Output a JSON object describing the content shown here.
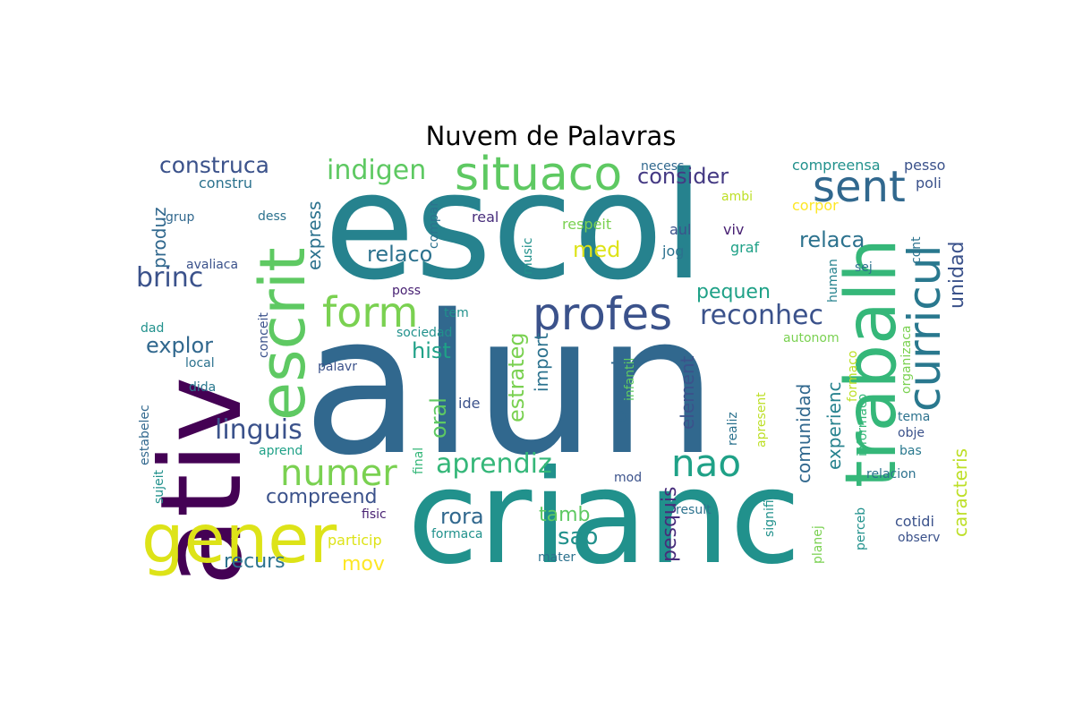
{
  "chart": {
    "type": "wordcloud",
    "title": "Nuvem de Palavras"
  },
  "chart_data": {
    "type": "wordcloud",
    "title": "Nuvem de Palavras",
    "palette": "viridis",
    "background": "#ffffff",
    "words": [
      {
        "text": "alun",
        "color": "#31688e"
      },
      {
        "text": "escol",
        "color": "#26828e"
      },
      {
        "text": "crianc",
        "color": "#21918c"
      },
      {
        "text": "ativ",
        "color": "#440154"
      },
      {
        "text": "gener",
        "color": "#dde318"
      },
      {
        "text": "trabalh",
        "color": "#35b779"
      },
      {
        "text": "escrit",
        "color": "#5ec962"
      },
      {
        "text": "situaco",
        "color": "#5ec962"
      },
      {
        "text": "profes",
        "color": "#3b528b"
      },
      {
        "text": "curricul",
        "color": "#29788e"
      },
      {
        "text": "sent",
        "color": "#31688e"
      },
      {
        "text": "form",
        "color": "#7ad151"
      },
      {
        "text": "numer",
        "color": "#7ad151"
      },
      {
        "text": "nao",
        "color": "#1fa187"
      },
      {
        "text": "reconhec",
        "color": "#3b528b"
      },
      {
        "text": "indigen",
        "color": "#5ec962"
      },
      {
        "text": "aprendiz",
        "color": "#35b779"
      },
      {
        "text": "linguis",
        "color": "#3b528b"
      },
      {
        "text": "brinc",
        "color": "#3b528b"
      },
      {
        "text": "construca",
        "color": "#3b528b"
      },
      {
        "text": "consider",
        "color": "#443983"
      },
      {
        "text": "relaco",
        "color": "#2c728e"
      },
      {
        "text": "relaca",
        "color": "#2c728e"
      },
      {
        "text": "med",
        "color": "#dde318"
      },
      {
        "text": "pequen",
        "color": "#1fa187"
      },
      {
        "text": "explor",
        "color": "#31688e"
      },
      {
        "text": "hist",
        "color": "#1fa187"
      },
      {
        "text": "compreend",
        "color": "#3b528b"
      },
      {
        "text": "rora",
        "color": "#31688e"
      },
      {
        "text": "sao",
        "color": "#21918c"
      },
      {
        "text": "tamb",
        "color": "#5ec962"
      },
      {
        "text": "recurs",
        "color": "#2c728e"
      },
      {
        "text": "mov",
        "color": "#fde725"
      },
      {
        "text": "caracteris",
        "color": "#bddf26"
      },
      {
        "text": "unidad",
        "color": "#3b528b"
      },
      {
        "text": "experienc",
        "color": "#26828e"
      },
      {
        "text": "comunidad",
        "color": "#31688e"
      },
      {
        "text": "pesquis",
        "color": "#472d7b"
      },
      {
        "text": "organiz",
        "color": "#31688e"
      },
      {
        "text": "element",
        "color": "#3b528b"
      },
      {
        "text": "estrateg",
        "color": "#7ad151"
      },
      {
        "text": "import",
        "color": "#2c728e"
      },
      {
        "text": "oral",
        "color": "#5ec962"
      },
      {
        "text": "express",
        "color": "#2c728e"
      },
      {
        "text": "produz",
        "color": "#31688e"
      },
      {
        "text": "compreensa",
        "color": "#21918c"
      },
      {
        "text": "pesso",
        "color": "#3b528b"
      },
      {
        "text": "poli",
        "color": "#3b528b"
      },
      {
        "text": "necess",
        "color": "#31688e"
      },
      {
        "text": "ambi",
        "color": "#bddf26"
      },
      {
        "text": "corpor",
        "color": "#fde725"
      },
      {
        "text": "respeit",
        "color": "#7ad151"
      },
      {
        "text": "aul",
        "color": "#3b528b"
      },
      {
        "text": "viv",
        "color": "#482173"
      },
      {
        "text": "jog",
        "color": "#2c728e"
      },
      {
        "text": "graf",
        "color": "#1fa187"
      },
      {
        "text": "cont",
        "color": "#2c728e"
      },
      {
        "text": "sej",
        "color": "#2c728e"
      },
      {
        "text": "human",
        "color": "#26828e"
      },
      {
        "text": "real",
        "color": "#472d7b"
      },
      {
        "text": "compar",
        "color": "#2c728e"
      },
      {
        "text": "music",
        "color": "#21918c"
      },
      {
        "text": "constru",
        "color": "#2c728e"
      },
      {
        "text": "grup",
        "color": "#31688e"
      },
      {
        "text": "dess",
        "color": "#2c728e"
      },
      {
        "text": "avaliaca",
        "color": "#3b528b"
      },
      {
        "text": "poss",
        "color": "#482173"
      },
      {
        "text": "tem",
        "color": "#21918c"
      },
      {
        "text": "sociedad",
        "color": "#21918c"
      },
      {
        "text": "dad",
        "color": "#21918c"
      },
      {
        "text": "conceit",
        "color": "#3b528b"
      },
      {
        "text": "local",
        "color": "#2c728e"
      },
      {
        "text": "palavr",
        "color": "#3b528b"
      },
      {
        "text": "dida",
        "color": "#29788e"
      },
      {
        "text": "ide",
        "color": "#3b528b"
      },
      {
        "text": "estabelec",
        "color": "#31688e"
      },
      {
        "text": "sujeit",
        "color": "#21918c"
      },
      {
        "text": "aprend",
        "color": "#1fa187"
      },
      {
        "text": "final",
        "color": "#35b779"
      },
      {
        "text": "fisic",
        "color": "#482173"
      },
      {
        "text": "particip",
        "color": "#dde318"
      },
      {
        "text": "formaca",
        "color": "#21918c"
      },
      {
        "text": "mater",
        "color": "#2c728e"
      },
      {
        "text": "mod",
        "color": "#3b528b"
      },
      {
        "text": "result",
        "color": "#2c728e"
      },
      {
        "text": "infantil",
        "color": "#5ec962"
      },
      {
        "text": "autonom",
        "color": "#7ad151"
      },
      {
        "text": "realiz",
        "color": "#2c728e"
      },
      {
        "text": "apresent",
        "color": "#bddf26"
      },
      {
        "text": "signific",
        "color": "#21918c"
      },
      {
        "text": "planej",
        "color": "#7ad151"
      },
      {
        "text": "perceb",
        "color": "#21918c"
      },
      {
        "text": "formaco",
        "color": "#bddf26"
      },
      {
        "text": "organizaca",
        "color": "#7ad151"
      },
      {
        "text": "informaco",
        "color": "#35b779"
      },
      {
        "text": "tema",
        "color": "#2c728e"
      },
      {
        "text": "obje",
        "color": "#3b528b"
      },
      {
        "text": "bas",
        "color": "#29788e"
      },
      {
        "text": "relacion",
        "color": "#2c728e"
      },
      {
        "text": "cotidi",
        "color": "#3b528b"
      },
      {
        "text": "observ",
        "color": "#3b528b"
      }
    ]
  }
}
